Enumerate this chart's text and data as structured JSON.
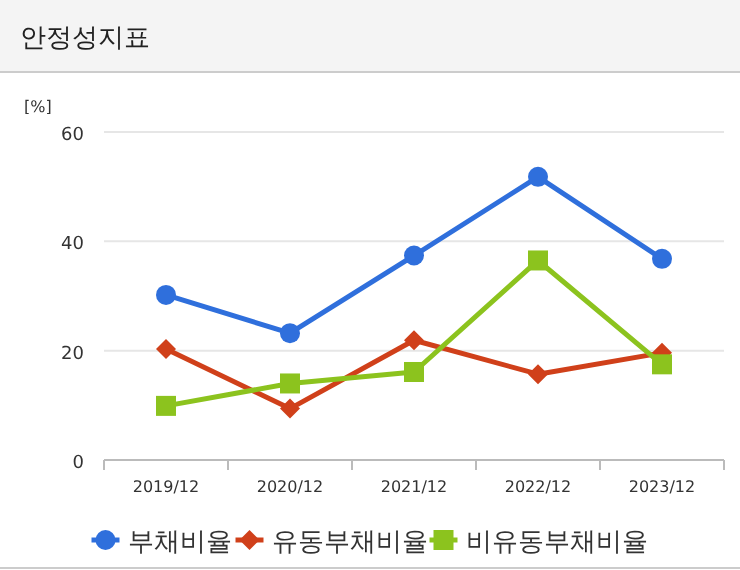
{
  "chart_data": {
    "type": "line",
    "title": "안정성지표",
    "ylabel": "[%]",
    "categories": [
      "2019/12",
      "2020/12",
      "2021/12",
      "2022/12",
      "2023/12"
    ],
    "series": [
      {
        "name": "부채비율",
        "color": "#2f6fdc",
        "marker": "circle",
        "values": [
          30.2,
          23.2,
          37.4,
          51.8,
          36.8
        ]
      },
      {
        "name": "유동부채비율",
        "color": "#d0401a",
        "marker": "diamond",
        "values": [
          20.3,
          9.4,
          21.9,
          15.7,
          19.6
        ]
      },
      {
        "name": "비유동부채비율",
        "color": "#8cc31e",
        "marker": "square",
        "values": [
          9.9,
          14.0,
          16.1,
          36.5,
          17.5
        ]
      }
    ],
    "ylim": [
      0,
      60
    ],
    "yticks": [
      0,
      20,
      40,
      60
    ],
    "grid": "y",
    "legend": "bottom",
    "line_style": "solid"
  }
}
